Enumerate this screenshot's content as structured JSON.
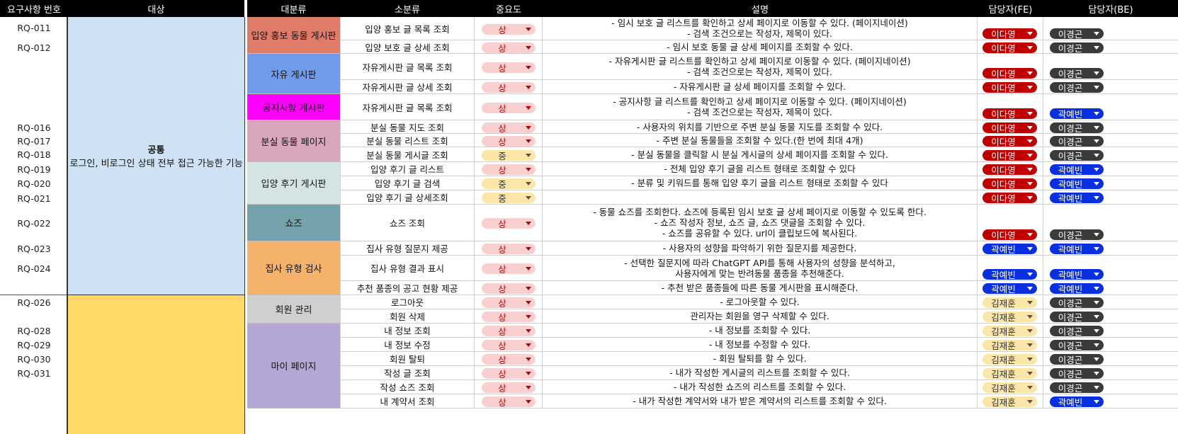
{
  "headers": {
    "req_no": "요구사항 번호",
    "target": "대상",
    "category": "대분류",
    "subcategory": "소분류",
    "importance": "중요도",
    "description": "설명",
    "fe_owner": "담당자(FE)",
    "be_owner": "담당자(BE)"
  },
  "target_common": {
    "title": "공통",
    "subtitle": "로그인, 비로그인 상태 전부 접근 가능한 기능"
  },
  "req_numbers": [
    "RQ-011",
    "RQ-012",
    "RQ-016",
    "RQ-017",
    "RQ-018",
    "RQ-019",
    "RQ-020",
    "RQ-021",
    "RQ-022",
    "RQ-023",
    "RQ-024",
    "RQ-026",
    "RQ-028",
    "RQ-029",
    "RQ-030",
    "RQ-031"
  ],
  "categories": [
    {
      "label": "입양 홍보 동물 게시판",
      "color": "#e07b6a"
    },
    {
      "label": "자유 게시판",
      "color": "#6f9be8"
    },
    {
      "label": "공지사항 게시판",
      "color": "#ff00ff"
    },
    {
      "label": "분실 동물 페이지",
      "color": "#d9a6be"
    },
    {
      "label": "입양 후기 게시판",
      "color": "#d4e3e3"
    },
    {
      "label": "쇼즈",
      "color": "#73a2ad"
    },
    {
      "label": "집사 유형 검사",
      "color": "#f4b26b"
    },
    {
      "label": "회원 관리",
      "color": "#cfcfcf"
    },
    {
      "label": "마이 페이지",
      "color": "#b4a7d6"
    }
  ],
  "rows": [
    {
      "sub": "입양 홍보 글 목록 조회",
      "imp": "상",
      "desc": [
        "- 임시 보호 글 리스트를 확인하고 상세 페이지로 이동할 수 있다. (페이지네이션)",
        "- 검색 조건으로는 작성자, 제목이 있다."
      ],
      "fe": "이다영",
      "be": "이경곤"
    },
    {
      "sub": "입양 보호 글 상세 조회",
      "imp": "상",
      "desc": [
        "- 임시 보호 동물 글 상세 페이지를 조회할 수 있다."
      ],
      "fe": "이다영",
      "be": "이경곤"
    },
    {
      "sub": "자유게시판 글 목록 조회",
      "imp": "상",
      "desc": [
        "- 자유게시판 글 리스트를 확인하고 상세 페이지로 이동할 수 있다. (페이지네이션)",
        "- 검색 조건으로는 작성자, 제목이 있다."
      ],
      "fe": "이다영",
      "be": "이경곤"
    },
    {
      "sub": "자유게시판 글 상세 조회",
      "imp": "상",
      "desc": [
        "- 자유게시판 글 상세 페이지를 조회할 수 있다."
      ],
      "fe": "이다영",
      "be": "이경곤"
    },
    {
      "sub": "자유게시판 글 목록 조회",
      "imp": "상",
      "desc": [
        "- 공지사항 글 리스트를 확인하고 상세 페이지로 이동할 수 있다. (페이지네이션)",
        "- 검색 조건으로는 작성자, 제목이 있다."
      ],
      "fe": "이다영",
      "be": "곽예빈"
    },
    {
      "sub": "분실 동물 지도 조회",
      "imp": "상",
      "desc": [
        "- 사용자의 위치를 기반으로 주변 분실 동물 지도를 조회할 수 있다."
      ],
      "fe": "이다영",
      "be": "이경곤"
    },
    {
      "sub": "분실 동물 리스트 조회",
      "imp": "상",
      "desc": [
        "- 주변 분실 동물들을 조회할 수 있다.(한 번에 최대 4개)"
      ],
      "fe": "이다영",
      "be": "이경곤"
    },
    {
      "sub": "분실 동물 게시글 조회",
      "imp": "중",
      "desc": [
        "- 분실 동물을 클릭할 시 분실 게시글의 상세 페이지를 조회할 수 있다."
      ],
      "fe": "이다영",
      "be": "이경곤"
    },
    {
      "sub": "입양 후기 글 리스트",
      "imp": "상",
      "desc": [
        "- 전체 입양 후기 글을 리스트 형태로 조회할 수 있다"
      ],
      "fe": "이다영",
      "be": "곽예빈"
    },
    {
      "sub": "입양 후기 글 검색",
      "imp": "중",
      "desc": [
        "- 분류 및 키워드를 통해 입양 후기 글을 리스트 형태로 조회할 수 있다"
      ],
      "fe": "이다영",
      "be": "곽예빈"
    },
    {
      "sub": "입양 후기 글 상세조회",
      "imp": "중",
      "desc": [],
      "fe": "이다영",
      "be": "곽예빈"
    },
    {
      "sub": "쇼즈 조회",
      "imp": "상",
      "desc": [
        "- 동물 쇼즈를 조회한다. 쇼즈에 등록된 임시 보호 글 상세 페이지로 이동할 수 있도록 한다.",
        "- 쇼즈 작성자 정보, 쇼즈 글, 쇼즈 댓글을 조회할 수 있다.",
        "- 쇼즈를 공유할 수 있다. url이 클립보드에 복사된다."
      ],
      "fe": "이다영",
      "be": "이경곤"
    },
    {
      "sub": "집사 유형 질문지 제공",
      "imp": "상",
      "desc": [
        "- 사용자의 성향을 파악하기 위한 질문지를 제공한다."
      ],
      "fe": "곽예빈",
      "be": "곽예빈"
    },
    {
      "sub": "집사 유형 결과 표시",
      "imp": "상",
      "desc": [
        "- 선택한 질문지에 따라 ChatGPT API를 통해 사용자의 성향을 분석하고,",
        "사용자에게 맞는 반려동물 품종을 추천해준다."
      ],
      "fe": "곽예빈",
      "be": "곽예빈"
    },
    {
      "sub": "추천 품종의 공고 현황 제공",
      "imp": "상",
      "desc": [
        "- 추천 받은 품종들에 따른 동물 게시판을 표시해준다."
      ],
      "fe": "곽예빈",
      "be": "곽예빈"
    },
    {
      "sub": "로그아웃",
      "imp": "상",
      "desc": [
        "- 로그아웃할 수 있다."
      ],
      "fe": "김재훈",
      "be": "이경곤"
    },
    {
      "sub": "회원 삭제",
      "imp": "상",
      "desc": [
        "관리자는 회원을 영구 삭제할 수 있다."
      ],
      "fe": "김재훈",
      "be": "이경곤"
    },
    {
      "sub": "내 정보 조회",
      "imp": "상",
      "desc": [
        "- 내 정보를 조회할 수 있다."
      ],
      "fe": "김재훈",
      "be": "이경곤"
    },
    {
      "sub": "내 정보 수정",
      "imp": "상",
      "desc": [
        "- 내 정보를 수정할 수 있다."
      ],
      "fe": "김재훈",
      "be": "이경곤"
    },
    {
      "sub": "회원 탈퇴",
      "imp": "상",
      "desc": [
        "- 회원 탈퇴를 할 수 있다."
      ],
      "fe": "김재훈",
      "be": "이경곤"
    },
    {
      "sub": "작성 글 조회",
      "imp": "상",
      "desc": [
        "- 내가 작성한 게시글의 리스트를 조회할 수 있다."
      ],
      "fe": "김재훈",
      "be": "이경곤"
    },
    {
      "sub": "작성 쇼즈 조회",
      "imp": "상",
      "desc": [
        "- 내가 작성한 쇼즈의 리스트를 조회할 수 있다."
      ],
      "fe": "김재훈",
      "be": "이경곤"
    },
    {
      "sub": "내 계약서 조회",
      "imp": "상",
      "desc": [
        "- 내가 작성한 계약서와 내가 받은 계약서의 리스트를 조회할 수 있다."
      ],
      "fe": "김재훈",
      "be": "곽예빈"
    }
  ],
  "colors": {
    "target_common_bg": "#cfe2f3",
    "target_member_bg": "#ffd966",
    "importance_high": "#f8d0d0",
    "importance_mid": "#fce5a8",
    "fe_lee": "#c00000",
    "fe_kwak": "#0a2fe0",
    "fe_kim": "#fce5a8",
    "be_lee": "#3a3a3a",
    "be_kwak": "#0a2fe0"
  }
}
